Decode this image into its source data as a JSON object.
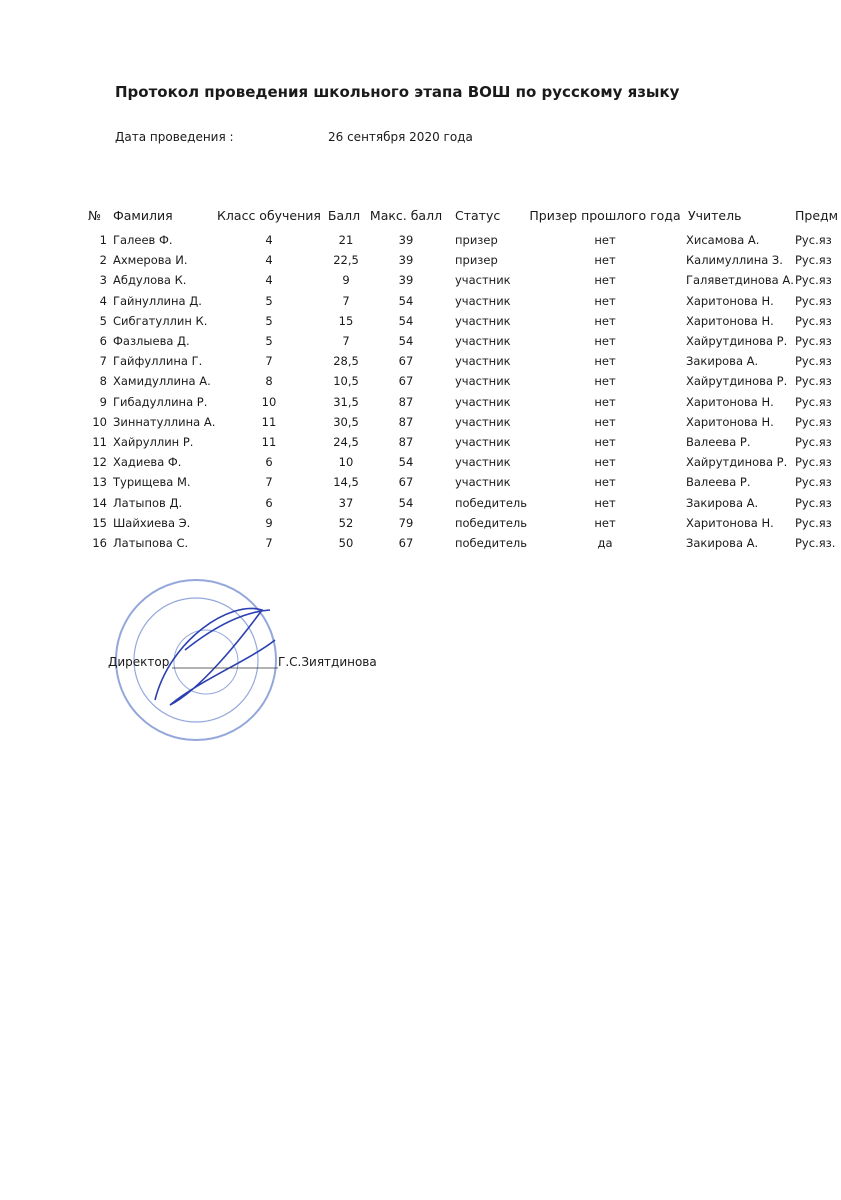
{
  "header": {
    "title": "Протокол проведения школьного этапа ВОШ по русскому языку",
    "date_label": "Дата проведения :",
    "date_value": "26 сентября 2020 года"
  },
  "table": {
    "columns": [
      "№",
      "Фамилия",
      "Класс обучения",
      "Балл",
      "Макс. балл",
      "Статус",
      "Призер прошлого года",
      "Учитель",
      "Предм"
    ],
    "rows": [
      [
        "1",
        "Галеев Ф.",
        "4",
        "21",
        "39",
        "призер",
        "нет",
        "Хисамова А.",
        "Рус.яз"
      ],
      [
        "2",
        "Ахмерова И.",
        "4",
        "22,5",
        "39",
        "призер",
        "нет",
        "Калимуллина З.",
        "Рус.яз"
      ],
      [
        "3",
        "Абдулова К.",
        "4",
        "9",
        "39",
        "участник",
        "нет",
        "Галяветдинова А.",
        "Рус.яз"
      ],
      [
        "4",
        "Гайнуллина Д.",
        "5",
        "7",
        "54",
        "участник",
        "нет",
        "Харитонова Н.",
        "Рус.яз"
      ],
      [
        "5",
        "Сибгатуллин К.",
        "5",
        "15",
        "54",
        "участник",
        "нет",
        "Харитонова Н.",
        "Рус.яз"
      ],
      [
        "6",
        "Фазлыева Д.",
        "5",
        "7",
        "54",
        "участник",
        "нет",
        "Хайрутдинова Р.",
        "Рус.яз"
      ],
      [
        "7",
        "Гайфуллина Г.",
        "7",
        "28,5",
        "67",
        "участник",
        "нет",
        "Закирова А.",
        "Рус.яз"
      ],
      [
        "8",
        "Хамидуллина А.",
        "8",
        "10,5",
        "67",
        "участник",
        "нет",
        "Хайрутдинова Р.",
        "Рус.яз"
      ],
      [
        "9",
        "Гибадуллина Р.",
        "10",
        "31,5",
        "87",
        "участник",
        "нет",
        "Харитонова Н.",
        "Рус.яз"
      ],
      [
        "10",
        "Зиннатуллина А.",
        "11",
        "30,5",
        "87",
        "участник",
        "нет",
        "Харитонова Н.",
        "Рус.яз"
      ],
      [
        "11",
        "Хайруллин Р.",
        "11",
        "24,5",
        "87",
        "участник",
        "нет",
        "Валеева Р.",
        "Рус.яз"
      ],
      [
        "12",
        "Хадиева Ф.",
        "6",
        "10",
        "54",
        "участник",
        "нет",
        "Хайрутдинова Р.",
        "Рус.яз"
      ],
      [
        "13",
        "Турищева М.",
        "7",
        "14,5",
        "67",
        "участник",
        "нет",
        "Валеева Р.",
        "Рус.яз"
      ],
      [
        "14",
        "Латыпов Д.",
        "6",
        "37",
        "54",
        "победитель",
        "нет",
        "Закирова А.",
        "Рус.яз"
      ],
      [
        "15",
        "Шайхиева Э.",
        "9",
        "52",
        "79",
        "победитель",
        "нет",
        "Харитонова Н.",
        "Рус.яз"
      ],
      [
        "16",
        "Латыпова С.",
        "7",
        "50",
        "67",
        "победитель",
        "да",
        "Закирова А.",
        "Рус.яз."
      ]
    ]
  },
  "footer": {
    "position": "Директор",
    "name": "Г.С.Зиятдинова"
  }
}
